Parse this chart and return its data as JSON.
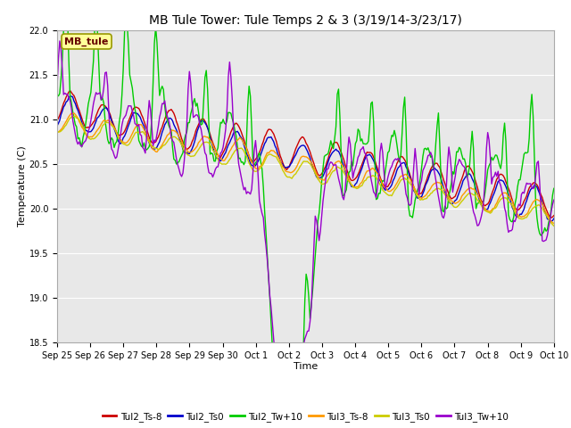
{
  "title": "MB Tule Tower: Tule Temps 2 & 3 (3/19/14-3/23/17)",
  "xlabel": "Time",
  "ylabel": "Temperature (C)",
  "ylim": [
    18.5,
    22.0
  ],
  "background_color": "#ffffff",
  "plot_bg_color": "#e8e8e8",
  "x_tick_labels": [
    "Sep 25",
    "Sep 26",
    "Sep 27",
    "Sep 28",
    "Sep 29",
    "Sep 30",
    "Oct 1",
    "Oct 2",
    "Oct 3",
    "Oct 4",
    "Oct 5",
    "Oct 6",
    "Oct 7",
    "Oct 8",
    "Oct 9",
    "Oct 10"
  ],
  "yticks": [
    18.5,
    19.0,
    19.5,
    20.0,
    20.5,
    21.0,
    21.5,
    22.0
  ],
  "series": {
    "Tul2_Ts-8": {
      "color": "#cc0000",
      "lw": 1.0
    },
    "Tul2_Ts0": {
      "color": "#0000cc",
      "lw": 1.0
    },
    "Tul2_Tw+10": {
      "color": "#00cc00",
      "lw": 1.0
    },
    "Tul3_Ts-8": {
      "color": "#ff9900",
      "lw": 1.0
    },
    "Tul3_Ts0": {
      "color": "#cccc00",
      "lw": 1.0
    },
    "Tul3_Tw+10": {
      "color": "#9900cc",
      "lw": 1.0
    }
  },
  "mb_tule_box_color": "#ffff99",
  "mb_tule_text_color": "#660000",
  "mb_tule_border_color": "#999900",
  "title_fontsize": 10,
  "axis_label_fontsize": 8,
  "tick_fontsize": 7,
  "legend_fontsize": 7.5
}
